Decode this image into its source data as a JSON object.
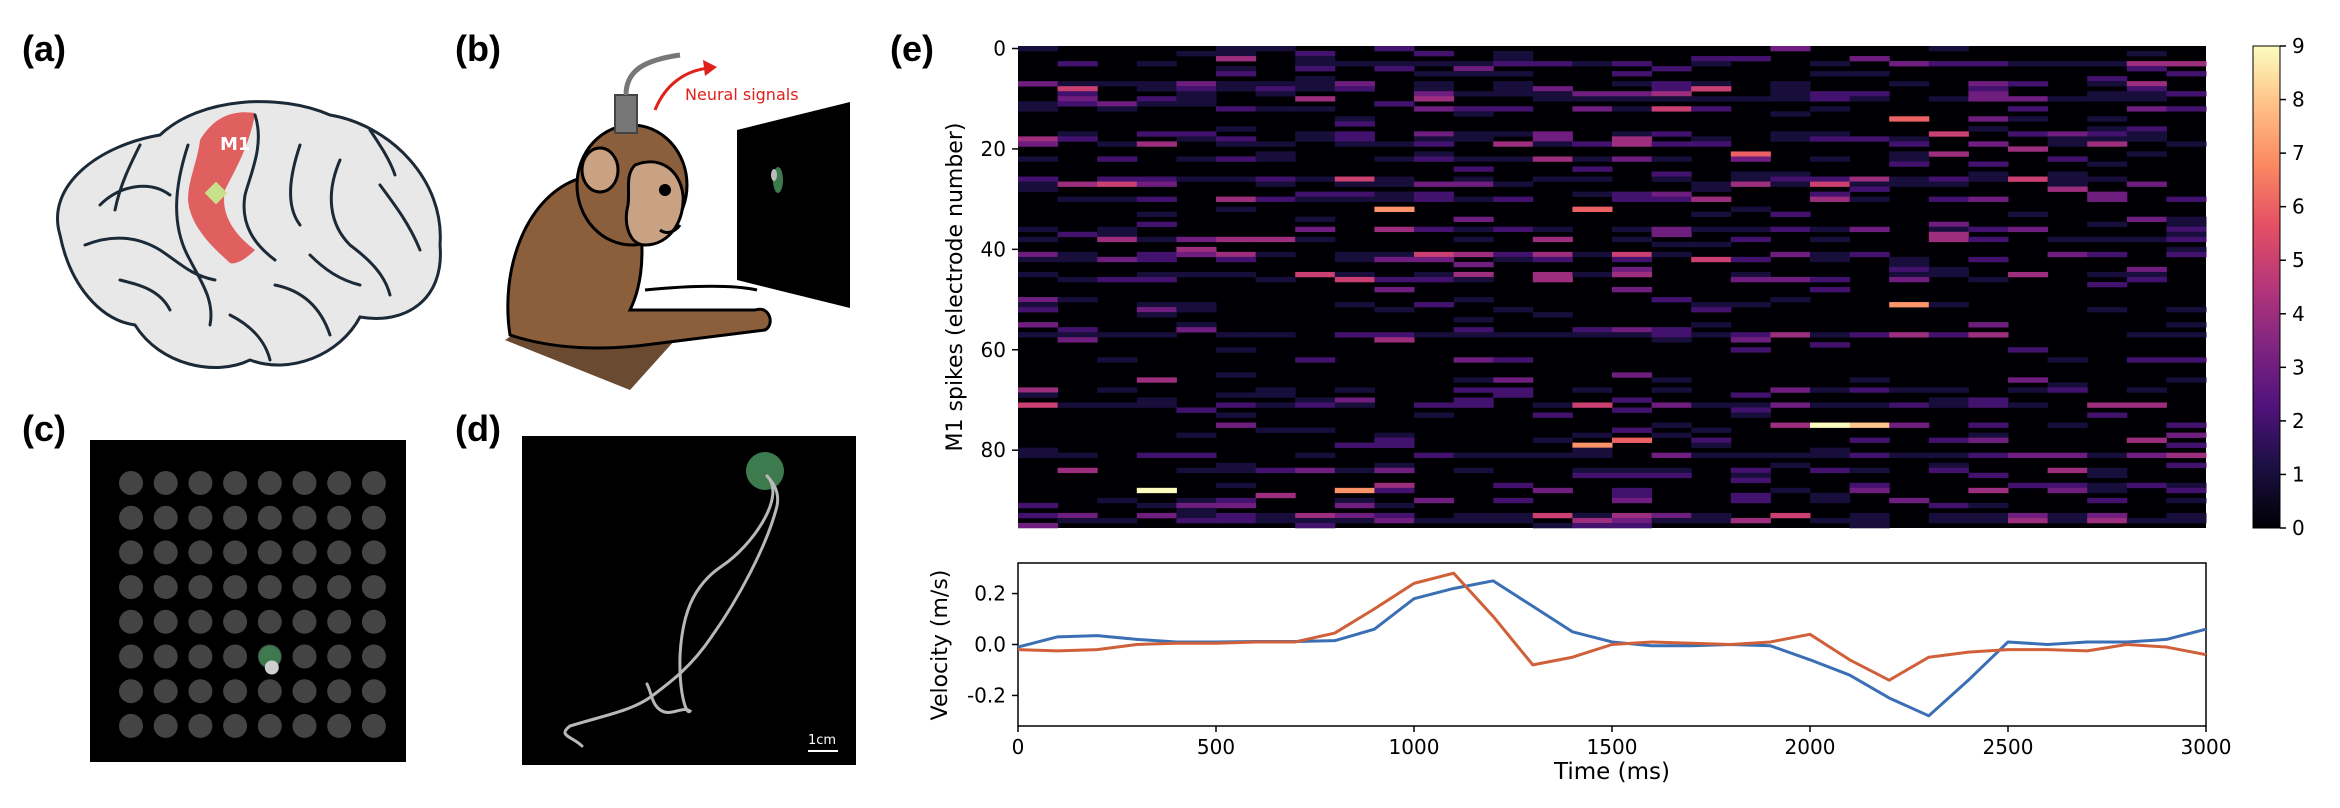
{
  "panels": {
    "a": {
      "label": "(a)",
      "region_label": "M1"
    },
    "b": {
      "label": "(b)",
      "arrow_label": "Neural signals"
    },
    "c": {
      "label": "(c)",
      "grid_rows": 8,
      "grid_cols": 8,
      "target": {
        "row": 5,
        "col": 4
      },
      "cursor": {
        "row": 5,
        "col": 4
      }
    },
    "d": {
      "label": "(d)",
      "scale_label": "1cm"
    },
    "e": {
      "label": "(e)"
    }
  },
  "colors": {
    "brain_fill": "#e8e8e8",
    "m1_region": "#e06060",
    "implant": "#c7e08a",
    "monkey_fur": "#8b5e3c",
    "monkey_face": "#c9a183",
    "neural_signal": "#e0201a",
    "target_green": "#3d7a4e",
    "trace_gray": "#b8b8b8",
    "series_blue": "#3b6fb5",
    "series_orange": "#d0603a"
  },
  "chart_data": [
    {
      "type": "heatmap",
      "title": "",
      "xlabel": "",
      "ylabel": "M1 spikes (electrode number)",
      "y_ticks": [
        0,
        20,
        40,
        60,
        80
      ],
      "y_range": [
        0,
        96
      ],
      "x_range": [
        0,
        3000
      ],
      "n_electrodes": 96,
      "n_bins": 30,
      "bin_ms": 100,
      "colorbar": {
        "min": 0,
        "max": 9,
        "ticks": [
          0,
          1,
          2,
          3,
          4,
          5,
          6,
          7,
          8,
          9
        ],
        "colormap": "magma"
      },
      "notable_cells": [
        {
          "electrode": 88,
          "bin": 3,
          "value": 9
        },
        {
          "electrode": 88,
          "bin": 8,
          "value": 7
        },
        {
          "electrode": 75,
          "bin": 20,
          "value": 9
        },
        {
          "electrode": 75,
          "bin": 21,
          "value": 8
        },
        {
          "electrode": 32,
          "bin": 9,
          "value": 7
        },
        {
          "electrode": 32,
          "bin": 14,
          "value": 6
        },
        {
          "electrode": 51,
          "bin": 22,
          "value": 7
        },
        {
          "electrode": 21,
          "bin": 18,
          "value": 6
        },
        {
          "electrode": 14,
          "bin": 22,
          "value": 6
        },
        {
          "electrode": 79,
          "bin": 14,
          "value": 7
        },
        {
          "electrode": 78,
          "bin": 15,
          "value": 6
        },
        {
          "electrode": 12,
          "bin": 16,
          "value": 5
        },
        {
          "electrode": 71,
          "bin": 0,
          "value": 5
        }
      ]
    },
    {
      "type": "line",
      "title": "",
      "xlabel": "Time (ms)",
      "ylabel": "Velocity (m/s)",
      "xlim": [
        0,
        3000
      ],
      "ylim": [
        -0.32,
        0.32
      ],
      "x_ticks": [
        0,
        500,
        1000,
        1500,
        2000,
        2500,
        3000
      ],
      "y_ticks": [
        -0.2,
        0.0,
        0.2
      ],
      "x": [
        0,
        100,
        200,
        300,
        400,
        500,
        600,
        700,
        800,
        900,
        1000,
        1100,
        1200,
        1300,
        1400,
        1500,
        1600,
        1700,
        1800,
        1900,
        2000,
        2100,
        2200,
        2300,
        2400,
        2500,
        2600,
        2700,
        2800,
        2900,
        3000
      ],
      "series": [
        {
          "color": "#3b6fb5",
          "values": [
            -0.01,
            0.03,
            0.035,
            0.02,
            0.01,
            0.01,
            0.012,
            0.012,
            0.015,
            0.06,
            0.18,
            0.22,
            0.25,
            0.15,
            0.05,
            0.01,
            -0.005,
            -0.005,
            0.0,
            -0.005,
            -0.06,
            -0.12,
            -0.21,
            -0.28,
            -0.14,
            0.01,
            0.0,
            0.01,
            0.01,
            0.02,
            0.06
          ]
        },
        {
          "color": "#d0603a",
          "values": [
            -0.02,
            -0.025,
            -0.02,
            0.0,
            0.005,
            0.005,
            0.01,
            0.01,
            0.045,
            0.14,
            0.24,
            0.28,
            0.11,
            -0.08,
            -0.05,
            0.0,
            0.01,
            0.005,
            0.0,
            0.01,
            0.04,
            -0.06,
            -0.14,
            -0.05,
            -0.03,
            -0.02,
            -0.02,
            -0.025,
            0.0,
            -0.01,
            -0.04
          ]
        }
      ]
    }
  ]
}
